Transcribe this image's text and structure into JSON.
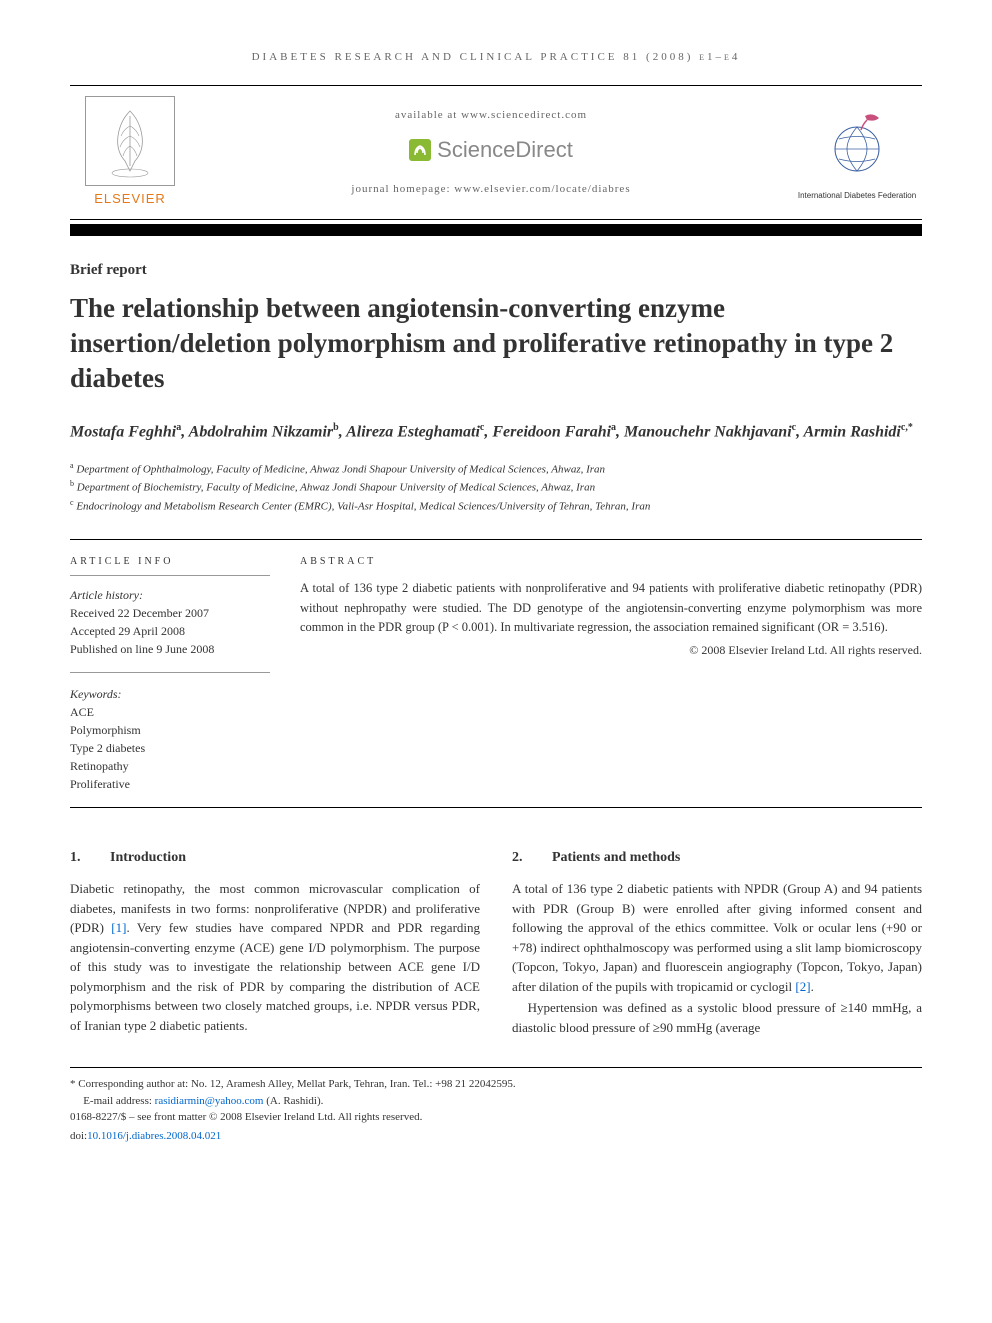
{
  "journal_header": "DIABETES RESEARCH AND CLINICAL PRACTICE 81 (2008) e1–e4",
  "banner": {
    "elsevier_label": "ELSEVIER",
    "available_at": "available at www.sciencedirect.com",
    "sciencedirect": "ScienceDirect",
    "homepage": "journal homepage: www.elsevier.com/locate/diabres",
    "idf_label": "International Diabetes Federation"
  },
  "article_type": "Brief report",
  "title": "The relationship between angiotensin-converting enzyme insertion/deletion polymorphism and proliferative retinopathy in type 2 diabetes",
  "authors_html": "Mostafa Feghhi<sup>a</sup>, Abdolrahim Nikzamir<sup>b</sup>, Alireza Esteghamati<sup>c</sup>, Fereidoon Farahi<sup>a</sup>, Manouchehr Nakhjavani<sup>c</sup>, Armin Rashidi<sup>c,*</sup>",
  "affiliations": [
    {
      "sup": "a",
      "text": "Department of Ophthalmology, Faculty of Medicine, Ahwaz Jondi Shapour University of Medical Sciences, Ahwaz, Iran"
    },
    {
      "sup": "b",
      "text": "Department of Biochemistry, Faculty of Medicine, Ahwaz Jondi Shapour University of Medical Sciences, Ahwaz, Iran"
    },
    {
      "sup": "c",
      "text": "Endocrinology and Metabolism Research Center (EMRC), Vali-Asr Hospital, Medical Sciences/University of Tehran, Tehran, Iran"
    }
  ],
  "info": {
    "heading": "ARTICLE INFO",
    "history_label": "Article history:",
    "received": "Received 22 December 2007",
    "accepted": "Accepted 29 April 2008",
    "published": "Published on line 9 June 2008",
    "keywords_label": "Keywords:",
    "keywords": [
      "ACE",
      "Polymorphism",
      "Type 2 diabetes",
      "Retinopathy",
      "Proliferative"
    ]
  },
  "abstract": {
    "heading": "ABSTRACT",
    "text": "A total of 136 type 2 diabetic patients with nonproliferative and 94 patients with proliferative diabetic retinopathy (PDR) without nephropathy were studied. The DD genotype of the angiotensin-converting enzyme polymorphism was more common in the PDR group (P < 0.001). In multivariate regression, the association remained significant (OR = 3.516).",
    "copyright": "© 2008 Elsevier Ireland Ltd. All rights reserved."
  },
  "sections": {
    "intro": {
      "num": "1.",
      "title": "Introduction",
      "text_html": "Diabetic retinopathy, the most common microvascular complication of diabetes, manifests in two forms: nonproliferative (NPDR) and proliferative (PDR) <span class='ref'>[1]</span>. Very few studies have compared NPDR and PDR regarding angiotensin-converting enzyme (ACE) gene I/D polymorphism. The purpose of this study was to investigate the relationship between ACE gene I/D polymorphism and the risk of PDR by comparing the distribution of ACE polymorphisms between two closely matched groups, i.e. NPDR versus PDR, of Iranian type 2 diabetic patients."
    },
    "methods": {
      "num": "2.",
      "title": "Patients and methods",
      "p1_html": "A total of 136 type 2 diabetic patients with NPDR (Group A) and 94 patients with PDR (Group B) were enrolled after giving informed consent and following the approval of the ethics committee. Volk or ocular lens (+90 or +78) indirect ophthalmoscopy was performed using a slit lamp biomicroscopy (Topcon, Tokyo, Japan) and fluorescein angiography (Topcon, Tokyo, Japan) after dilation of the pupils with tropicamid or cyclogil <span class='ref'>[2]</span>.",
      "p2": "Hypertension was defined as a systolic blood pressure of ≥140 mmHg, a diastolic blood pressure of ≥90 mmHg (average"
    }
  },
  "footnotes": {
    "corresponding": "* Corresponding author at: No. 12, Aramesh Alley, Mellat Park, Tehran, Iran. Tel.: +98 21 22042595.",
    "email_label": "E-mail address:",
    "email": "rasidiarmin@yahoo.com",
    "email_person": "(A. Rashidi).",
    "front_matter": "0168-8227/$ – see front matter © 2008 Elsevier Ireland Ltd. All rights reserved.",
    "doi_label": "doi:",
    "doi": "10.1016/j.diabres.2008.04.021"
  },
  "colors": {
    "elsevier_orange": "#e67817",
    "sd_green": "#8ab933",
    "link_blue": "#0066cc",
    "text": "#333333"
  }
}
